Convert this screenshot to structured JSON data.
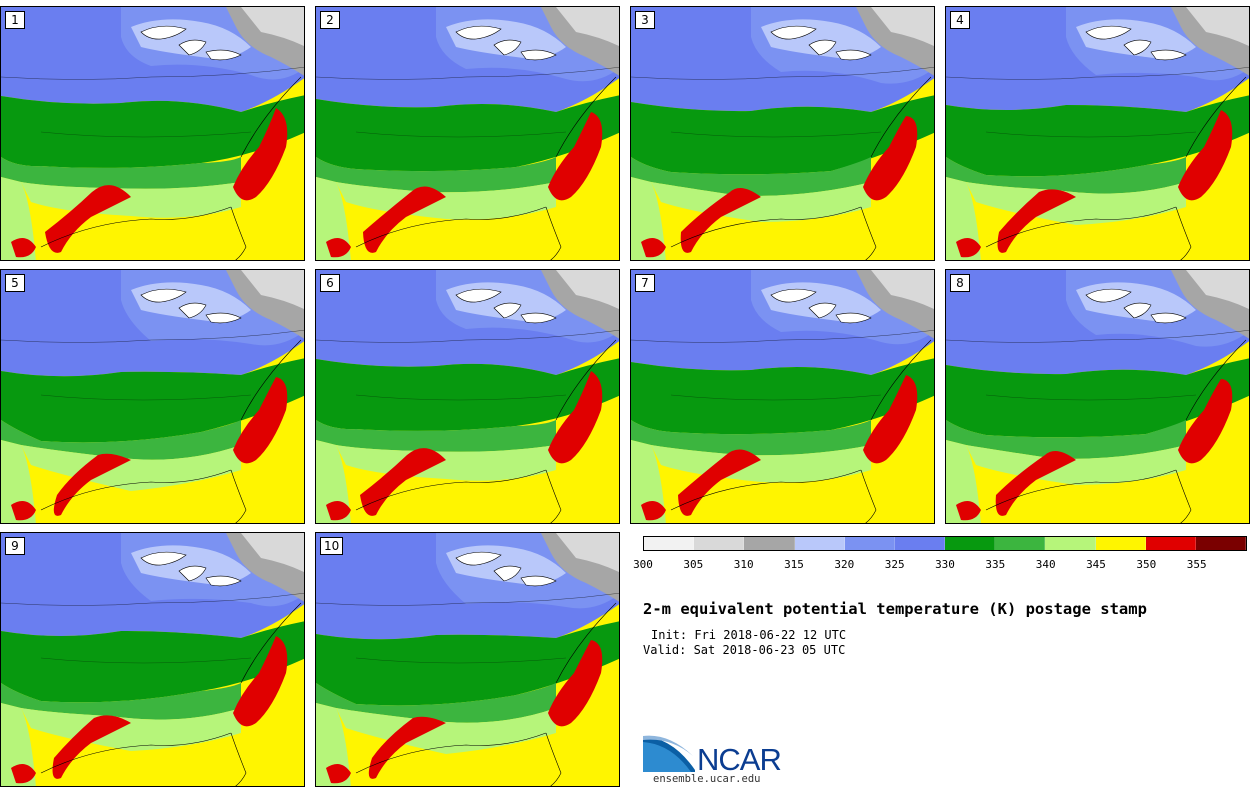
{
  "title": "2-m equivalent potential temperature (K) postage stamp",
  "init": "Init: Fri 2018-06-22 12 UTC",
  "valid": "Valid: Sat 2018-06-23 05 UTC",
  "logo_text": "NCAR",
  "site": "ensemble.ucar.edu",
  "members": [
    "1",
    "2",
    "3",
    "4",
    "5",
    "6",
    "7",
    "8",
    "9",
    "10"
  ],
  "colorbar": {
    "ticks": [
      "300",
      "305",
      "310",
      "315",
      "320",
      "325",
      "330",
      "335",
      "340",
      "345",
      "350",
      "355"
    ],
    "colors": [
      "#f2f2f2",
      "#d9d9d9",
      "#a6a6a6",
      "#b9c8fa",
      "#7b92f2",
      "#6a7ef0",
      "#07990f",
      "#3cb53f",
      "#b6f57a",
      "#fff500",
      "#e00000",
      "#7a0000"
    ]
  }
}
